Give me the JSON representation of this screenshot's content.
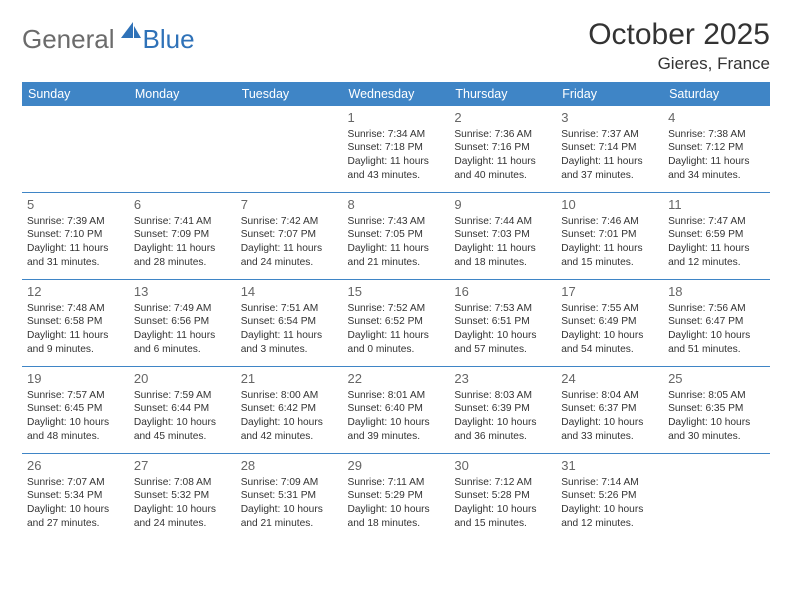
{
  "logo": {
    "general": "General",
    "blue": "Blue"
  },
  "title": "October 2025",
  "location": "Gieres, France",
  "colors": {
    "header_bg": "#3f85c6",
    "header_text": "#ffffff",
    "rule": "#3f85c6",
    "logo_gray": "#6b6b6b",
    "logo_blue": "#2f72b8",
    "body_text": "#333333",
    "daynum": "#666666"
  },
  "daysOfWeek": [
    "Sunday",
    "Monday",
    "Tuesday",
    "Wednesday",
    "Thursday",
    "Friday",
    "Saturday"
  ],
  "weeks": [
    [
      null,
      null,
      null,
      {
        "n": "1",
        "sr": "7:34 AM",
        "ss": "7:18 PM",
        "dh": "11",
        "dm": "43"
      },
      {
        "n": "2",
        "sr": "7:36 AM",
        "ss": "7:16 PM",
        "dh": "11",
        "dm": "40"
      },
      {
        "n": "3",
        "sr": "7:37 AM",
        "ss": "7:14 PM",
        "dh": "11",
        "dm": "37"
      },
      {
        "n": "4",
        "sr": "7:38 AM",
        "ss": "7:12 PM",
        "dh": "11",
        "dm": "34"
      }
    ],
    [
      {
        "n": "5",
        "sr": "7:39 AM",
        "ss": "7:10 PM",
        "dh": "11",
        "dm": "31"
      },
      {
        "n": "6",
        "sr": "7:41 AM",
        "ss": "7:09 PM",
        "dh": "11",
        "dm": "28"
      },
      {
        "n": "7",
        "sr": "7:42 AM",
        "ss": "7:07 PM",
        "dh": "11",
        "dm": "24"
      },
      {
        "n": "8",
        "sr": "7:43 AM",
        "ss": "7:05 PM",
        "dh": "11",
        "dm": "21"
      },
      {
        "n": "9",
        "sr": "7:44 AM",
        "ss": "7:03 PM",
        "dh": "11",
        "dm": "18"
      },
      {
        "n": "10",
        "sr": "7:46 AM",
        "ss": "7:01 PM",
        "dh": "11",
        "dm": "15"
      },
      {
        "n": "11",
        "sr": "7:47 AM",
        "ss": "6:59 PM",
        "dh": "11",
        "dm": "12"
      }
    ],
    [
      {
        "n": "12",
        "sr": "7:48 AM",
        "ss": "6:58 PM",
        "dh": "11",
        "dm": "9"
      },
      {
        "n": "13",
        "sr": "7:49 AM",
        "ss": "6:56 PM",
        "dh": "11",
        "dm": "6"
      },
      {
        "n": "14",
        "sr": "7:51 AM",
        "ss": "6:54 PM",
        "dh": "11",
        "dm": "3"
      },
      {
        "n": "15",
        "sr": "7:52 AM",
        "ss": "6:52 PM",
        "dh": "11",
        "dm": "0"
      },
      {
        "n": "16",
        "sr": "7:53 AM",
        "ss": "6:51 PM",
        "dh": "10",
        "dm": "57"
      },
      {
        "n": "17",
        "sr": "7:55 AM",
        "ss": "6:49 PM",
        "dh": "10",
        "dm": "54"
      },
      {
        "n": "18",
        "sr": "7:56 AM",
        "ss": "6:47 PM",
        "dh": "10",
        "dm": "51"
      }
    ],
    [
      {
        "n": "19",
        "sr": "7:57 AM",
        "ss": "6:45 PM",
        "dh": "10",
        "dm": "48"
      },
      {
        "n": "20",
        "sr": "7:59 AM",
        "ss": "6:44 PM",
        "dh": "10",
        "dm": "45"
      },
      {
        "n": "21",
        "sr": "8:00 AM",
        "ss": "6:42 PM",
        "dh": "10",
        "dm": "42"
      },
      {
        "n": "22",
        "sr": "8:01 AM",
        "ss": "6:40 PM",
        "dh": "10",
        "dm": "39"
      },
      {
        "n": "23",
        "sr": "8:03 AM",
        "ss": "6:39 PM",
        "dh": "10",
        "dm": "36"
      },
      {
        "n": "24",
        "sr": "8:04 AM",
        "ss": "6:37 PM",
        "dh": "10",
        "dm": "33"
      },
      {
        "n": "25",
        "sr": "8:05 AM",
        "ss": "6:35 PM",
        "dh": "10",
        "dm": "30"
      }
    ],
    [
      {
        "n": "26",
        "sr": "7:07 AM",
        "ss": "5:34 PM",
        "dh": "10",
        "dm": "27"
      },
      {
        "n": "27",
        "sr": "7:08 AM",
        "ss": "5:32 PM",
        "dh": "10",
        "dm": "24"
      },
      {
        "n": "28",
        "sr": "7:09 AM",
        "ss": "5:31 PM",
        "dh": "10",
        "dm": "21"
      },
      {
        "n": "29",
        "sr": "7:11 AM",
        "ss": "5:29 PM",
        "dh": "10",
        "dm": "18"
      },
      {
        "n": "30",
        "sr": "7:12 AM",
        "ss": "5:28 PM",
        "dh": "10",
        "dm": "15"
      },
      {
        "n": "31",
        "sr": "7:14 AM",
        "ss": "5:26 PM",
        "dh": "10",
        "dm": "12"
      },
      null
    ]
  ],
  "labels": {
    "sunrise": "Sunrise:",
    "sunset": "Sunset:",
    "daylight": "Daylight:",
    "hours": "hours",
    "and": "and",
    "minutes": "minutes."
  }
}
